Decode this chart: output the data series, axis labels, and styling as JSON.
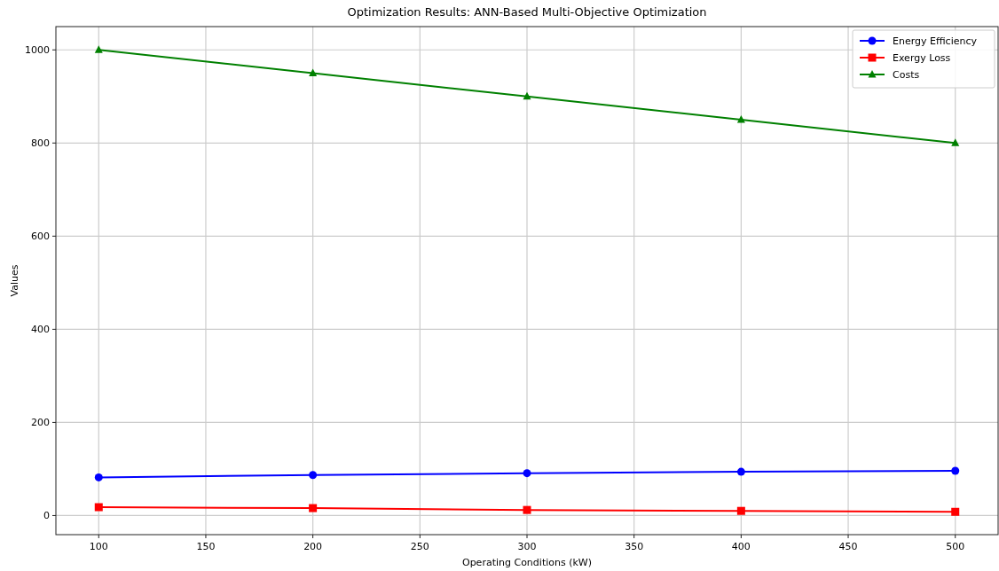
{
  "chart_data": {
    "type": "line",
    "title": "Optimization Results: ANN-Based Multi-Objective Optimization",
    "xlabel": "Operating Conditions (kW)",
    "ylabel": "Values",
    "x": [
      100,
      200,
      300,
      400,
      500
    ],
    "series": [
      {
        "name": "Energy Efficiency",
        "color": "#0000ff",
        "values": [
          82,
          87,
          91,
          94,
          96
        ],
        "marker": "circle"
      },
      {
        "name": "Exergy Loss",
        "color": "#ff0000",
        "values": [
          18,
          16,
          12,
          10,
          8
        ],
        "marker": "square"
      },
      {
        "name": "Costs",
        "color": "#008000",
        "values": [
          1000,
          950,
          900,
          850,
          800
        ],
        "marker": "triangle"
      }
    ],
    "xlim": [
      80,
      520
    ],
    "xticks": [
      100,
      150,
      200,
      250,
      300,
      350,
      400,
      450,
      500
    ],
    "ylim": [
      -41,
      1050
    ],
    "yticks": [
      0,
      200,
      400,
      600,
      800,
      1000
    ],
    "grid": true,
    "legend": "top right",
    "line_style": "solid"
  }
}
